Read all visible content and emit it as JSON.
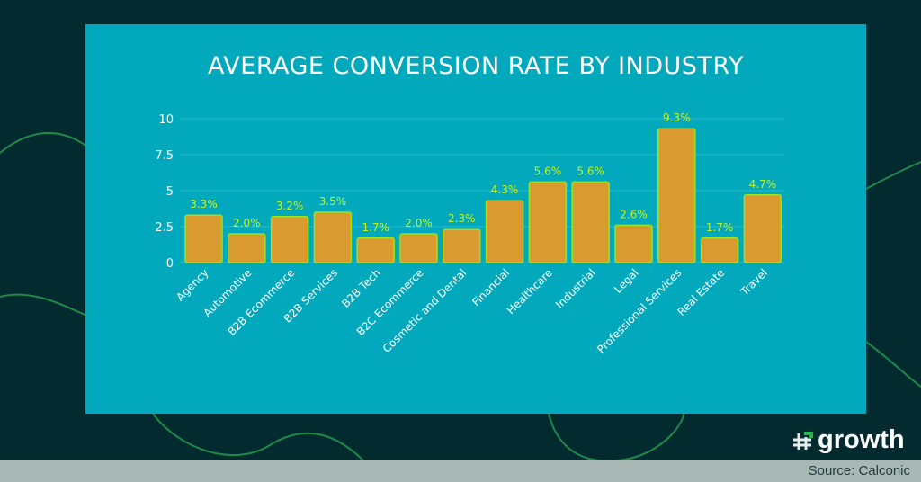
{
  "brand": {
    "name": "growth",
    "source": "Source: Calconic"
  },
  "colors": {
    "background": "#032a2f",
    "panel": "#02a8bb",
    "bar": "#d99a30",
    "bar_outline": "#9be31f",
    "data_label": "#c6f31c",
    "text": "#ffffff"
  },
  "chart_data": {
    "type": "bar",
    "title": "AVERAGE CONVERSION RATE BY INDUSTRY",
    "categories": [
      "Agency",
      "Automotive",
      "B2B Ecommerce",
      "B2B Services",
      "B2B Tech",
      "B2C Ecommerce",
      "Cosmetic and Dental",
      "Financial",
      "Healthcare",
      "Industrial",
      "Legal",
      "Professional Services",
      "Real Estate",
      "Travel"
    ],
    "values": [
      3.3,
      2.0,
      3.2,
      3.5,
      1.7,
      2.0,
      2.3,
      4.3,
      5.6,
      5.6,
      2.6,
      9.3,
      1.7,
      4.7
    ],
    "data_labels": [
      "3.3%",
      "2.0%",
      "3.2%",
      "3.5%",
      "1.7%",
      "2.0%",
      "2.3%",
      "4.3%",
      "5.6%",
      "5.6%",
      "2.6%",
      "9.3%",
      "1.7%",
      "4.7%"
    ],
    "yticks": [
      "0",
      "2.5",
      "5",
      "7.5",
      "10"
    ],
    "ylim": [
      0,
      10
    ],
    "grid": true,
    "xlabel": "",
    "ylabel": ""
  }
}
